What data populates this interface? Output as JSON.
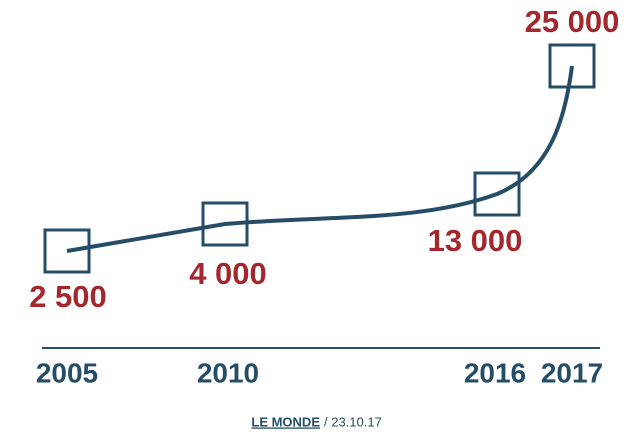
{
  "chart_data": {
    "type": "line",
    "categories": [
      "2005",
      "2010",
      "2016",
      "2017"
    ],
    "values": [
      2500,
      4000,
      13000,
      25000
    ],
    "value_labels": [
      "2 500",
      "4 000",
      "13 000",
      "25 000"
    ],
    "color": "#264d67",
    "label_color": "#a3282e",
    "source": "LE MONDE",
    "date": "/ 23.10.17"
  }
}
